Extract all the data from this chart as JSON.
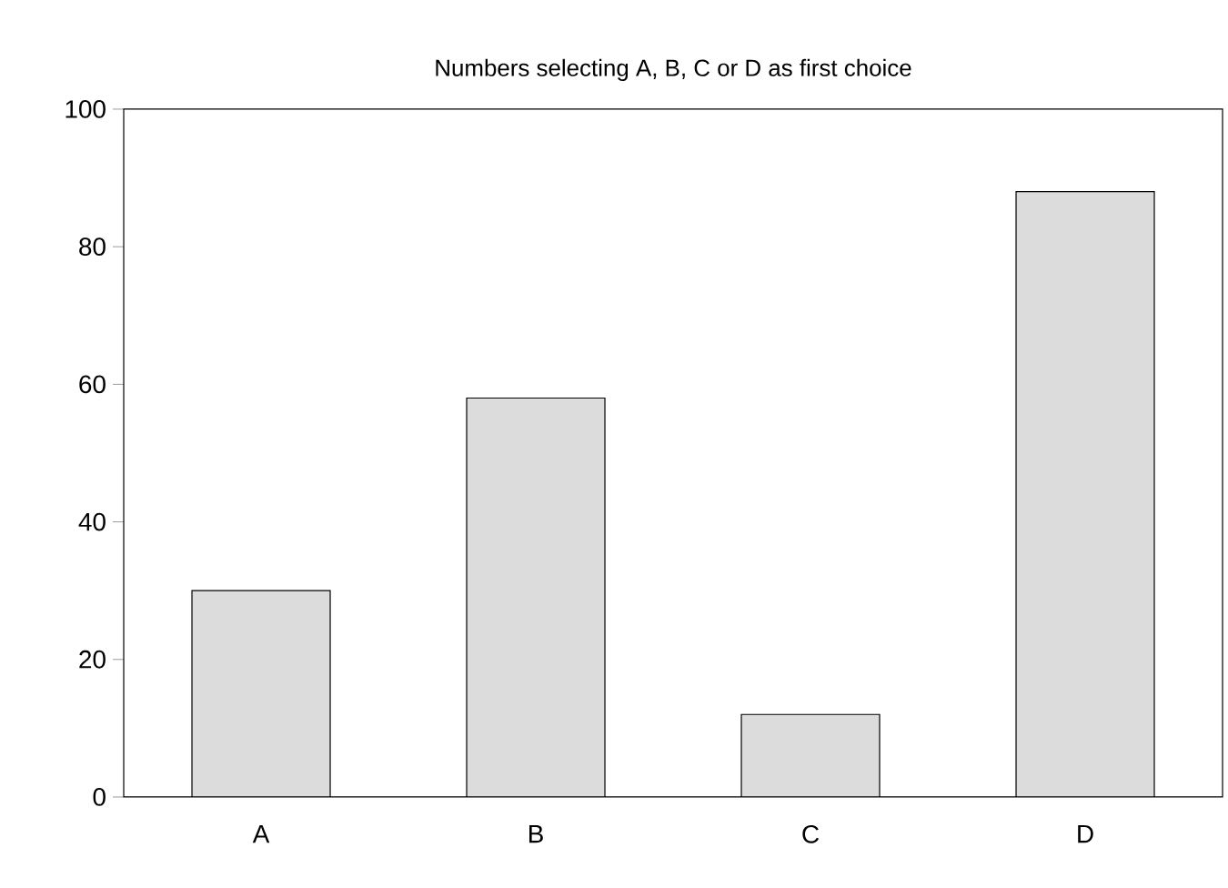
{
  "chart_data": {
    "type": "bar",
    "title": "Numbers selecting A, B, C or D as first choice",
    "categories": [
      "A",
      "B",
      "C",
      "D"
    ],
    "values": [
      30,
      58,
      12,
      88
    ],
    "color": "#dcdcdc",
    "ylim": [
      0,
      100
    ],
    "yticks": [
      0,
      20,
      40,
      60,
      80,
      100
    ]
  }
}
